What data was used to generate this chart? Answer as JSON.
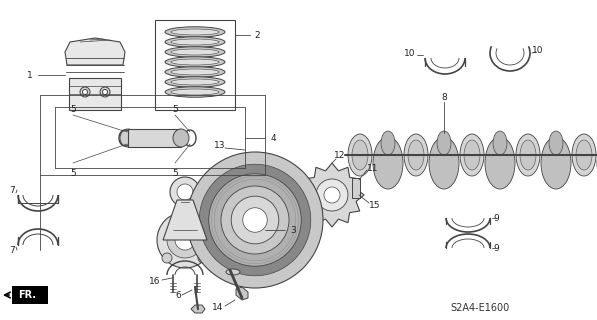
{
  "diagram_code": "S2A4-E1600",
  "bg_color": "#ffffff",
  "line_color": "#444444",
  "figsize": [
    5.97,
    3.2
  ],
  "dpi": 100,
  "label_fs": 6.5
}
